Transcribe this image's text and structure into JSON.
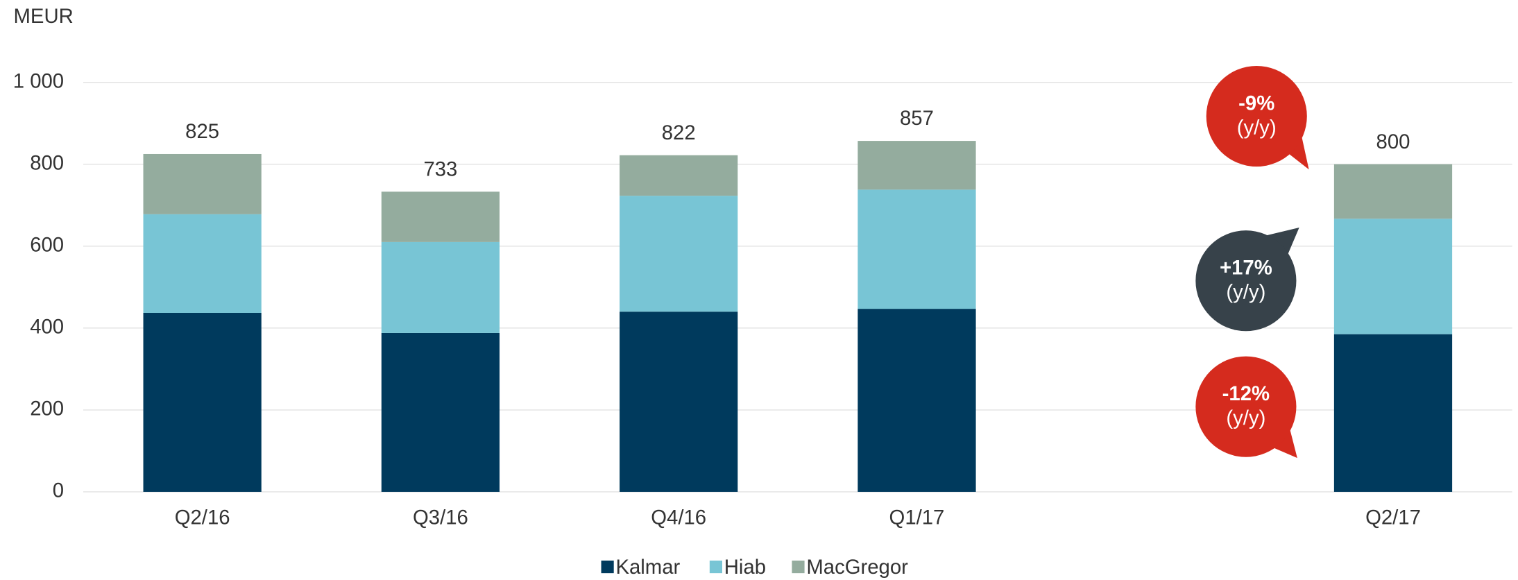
{
  "chart_data": {
    "type": "stacked_bar",
    "y_label": "MEUR",
    "categories": [
      "Q2/16",
      "Q3/16",
      "Q4/16",
      "Q1/17",
      null,
      "Q2/17"
    ],
    "series": [
      {
        "name": "Kalmar",
        "color": "#003a5d",
        "values": [
          437,
          388,
          440,
          447,
          null,
          385
        ]
      },
      {
        "name": "Hiab",
        "color": "#78c5d5",
        "values": [
          241,
          222,
          283,
          291,
          null,
          282
        ]
      },
      {
        "name": "MacGregor",
        "color": "#94ac9e",
        "values": [
          147,
          123,
          99,
          119,
          null,
          133
        ]
      }
    ],
    "totals": [
      825,
      733,
      822,
      857,
      null,
      800
    ],
    "ylim": [
      0,
      1000
    ],
    "yticks": [
      0,
      200,
      400,
      600,
      800,
      {
        "value": 1000,
        "label": "1 000"
      }
    ],
    "grid": true,
    "legend": "bottom",
    "annotations": [
      {
        "text": "-9%",
        "sub": "(y/y)",
        "color": "#d52b1e"
      },
      {
        "text": "+17%",
        "sub": "(y/y)",
        "color": "#37424a"
      },
      {
        "text": "-12%",
        "sub": "(y/y)",
        "color": "#d52b1e"
      }
    ]
  }
}
